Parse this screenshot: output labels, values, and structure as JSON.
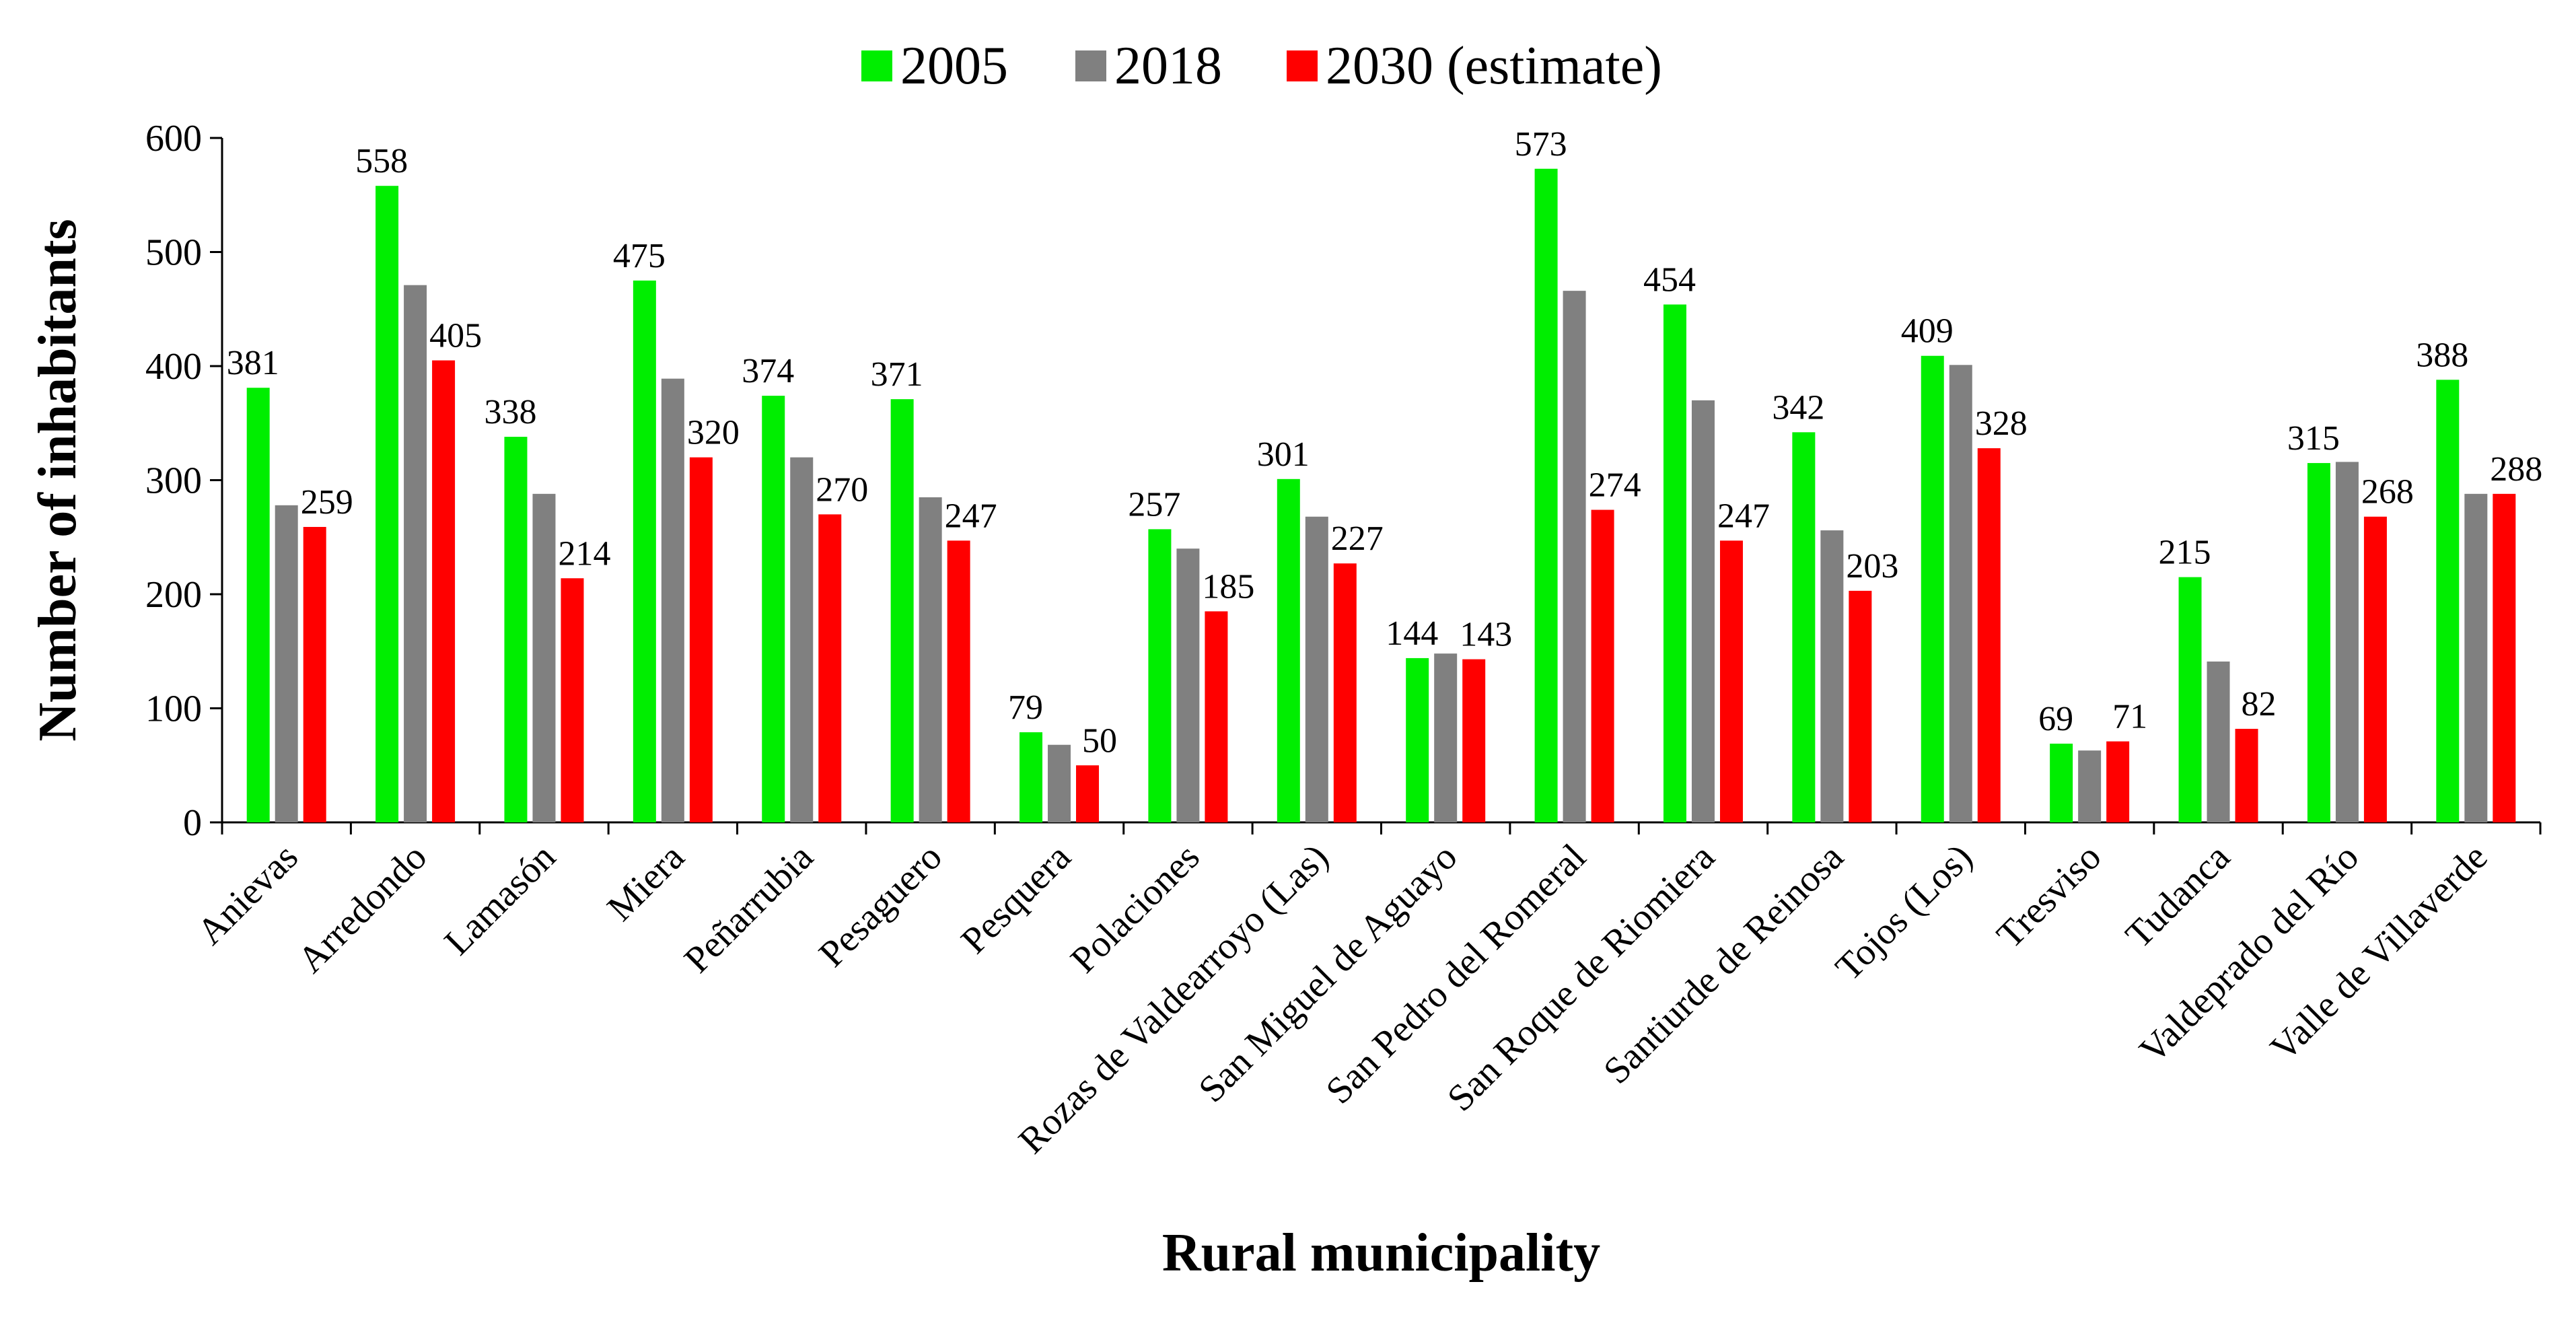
{
  "chart_data": {
    "type": "bar",
    "title": "",
    "xlabel": "Rural municipality",
    "ylabel": "Number of inhabitants",
    "ylim": [
      0,
      600
    ],
    "yticks": [
      0,
      100,
      200,
      300,
      400,
      500,
      600
    ],
    "grid": false,
    "legend_position": "top-center",
    "categories": [
      "Anievas",
      "Arredondo",
      "Lamasón",
      "Miera",
      "Peñarrubia",
      "Pesaguero",
      "Pesquera",
      "Polaciones",
      "Rozas de Valdearroyo (Las)",
      "San Miguel de Aguayo",
      "San Pedro del Romeral",
      "San Roque de Riomiera",
      "Santiurde de Reinosa",
      "Tojos (Los)",
      "Tresviso",
      "Tudanca",
      "Valdeprado del Río",
      "Valle de Villaverde"
    ],
    "series": [
      {
        "name": "2005",
        "color": "#00ee00",
        "values": [
          381,
          558,
          338,
          475,
          374,
          371,
          79,
          257,
          301,
          144,
          573,
          454,
          342,
          409,
          69,
          215,
          315,
          388
        ]
      },
      {
        "name": "2018",
        "color": "#808080",
        "values": [
          278,
          471,
          288,
          389,
          320,
          285,
          68,
          240,
          268,
          148,
          466,
          370,
          256,
          401,
          63,
          141,
          316,
          288
        ]
      },
      {
        "name": "2030 (estimate)",
        "color": "#ff0000",
        "values": [
          259,
          405,
          214,
          320,
          270,
          247,
          50,
          185,
          227,
          143,
          274,
          247,
          203,
          328,
          71,
          82,
          268,
          288
        ]
      }
    ],
    "data_labels": {
      "2005": [
        "381",
        "558",
        "338",
        "475",
        "374",
        "371",
        "79",
        "257",
        "301",
        "144",
        "573",
        "454",
        "342",
        "409",
        "69",
        "215",
        "315",
        "388"
      ],
      "2030 (estimate)": [
        "259",
        "405",
        "214",
        "320",
        "270",
        "247",
        "50",
        "185",
        "227",
        "143",
        "274",
        "247",
        "203",
        "328",
        "71",
        "82",
        "268",
        "288"
      ]
    }
  }
}
